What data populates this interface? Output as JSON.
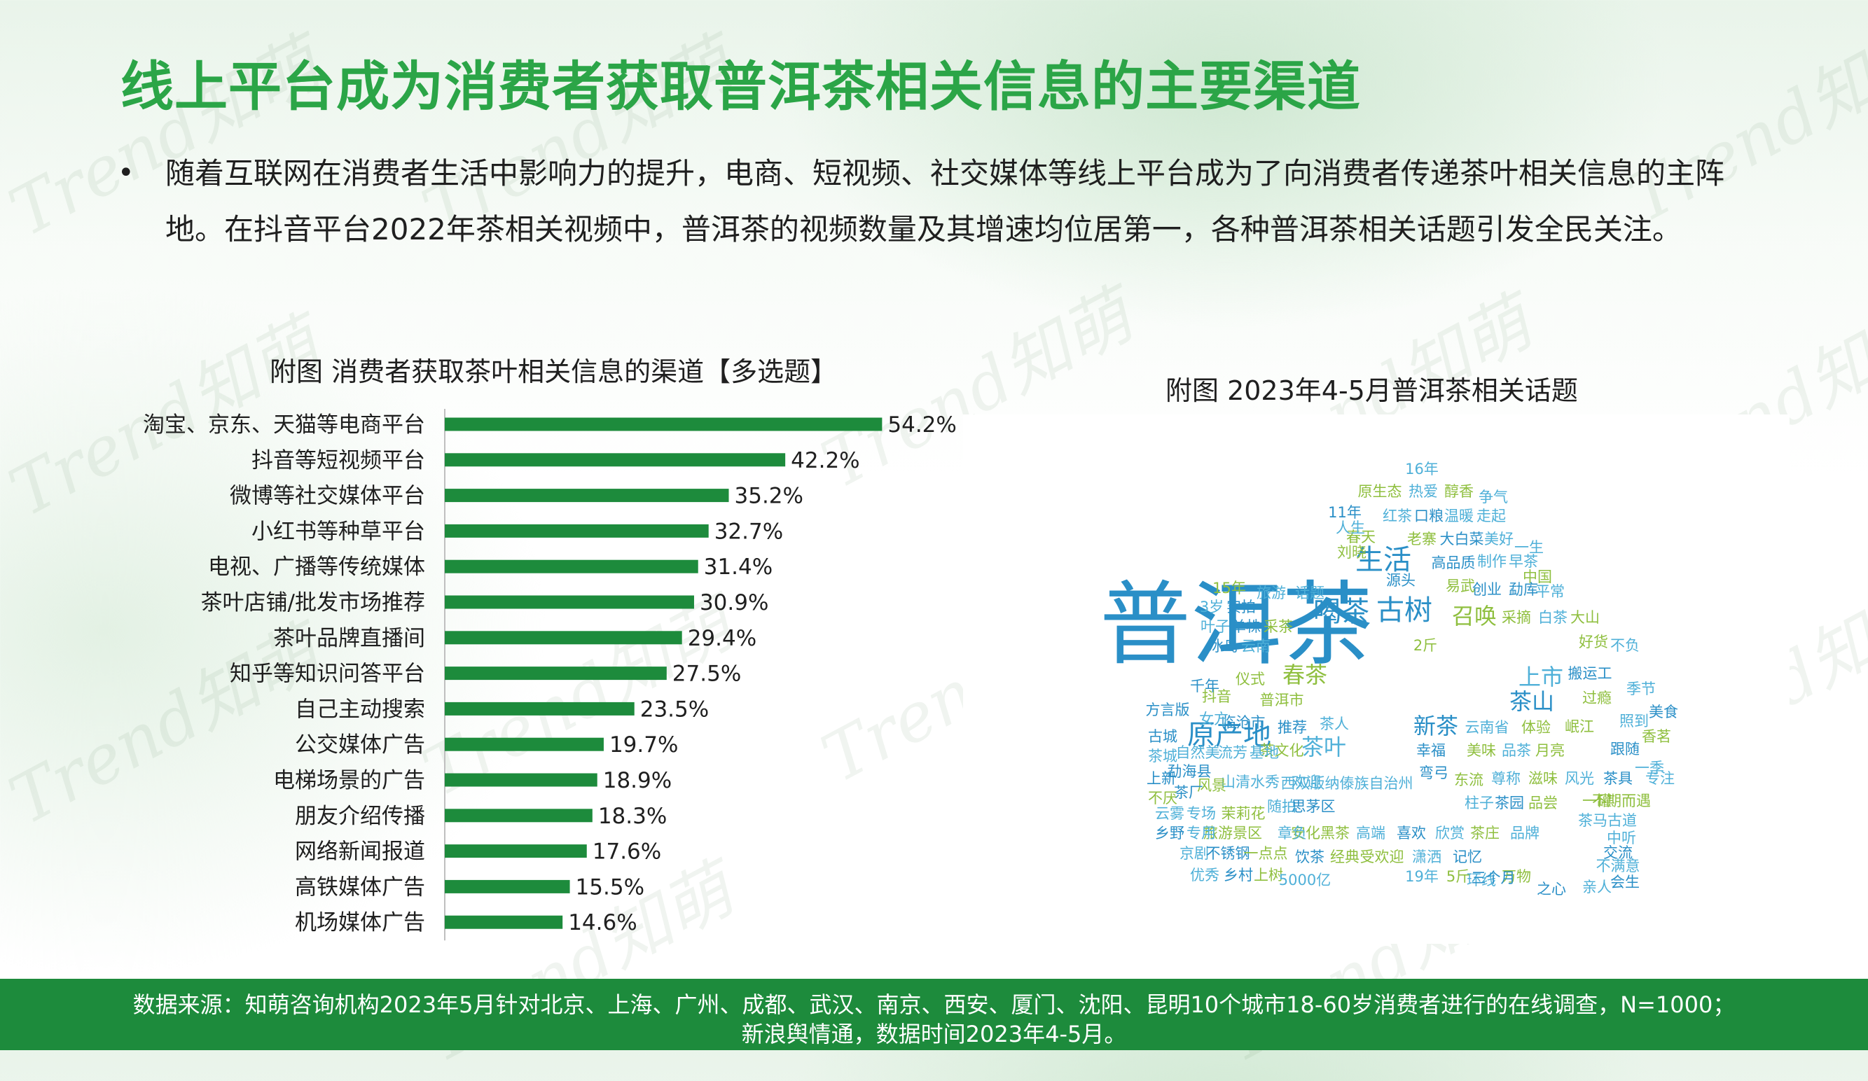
{
  "title": "线上平台成为消费者获取普洱茶相关信息的主要渠道",
  "bullet": "随着互联网在消费者生活中影响力的提升，电商、短视频、社交媒体等线上平台成为了向消费者传递茶叶相关信息的主阵地。在抖音平台2022年茶相关视频中，普洱茶的视频数量及其增速均位居第一，各种普洱茶相关话题引发全民关注。",
  "watermark_text": "Trend知萌",
  "chart_data": {
    "type": "bar",
    "orientation": "horizontal",
    "title": "附图 消费者获取茶叶相关信息的渠道【多选题】",
    "categories": [
      "淘宝、京东、天猫等电商平台",
      "抖音等短视频平台",
      "微博等社交媒体平台",
      "小红书等种草平台",
      "电视、广播等传统媒体",
      "茶叶店铺/批发市场推荐",
      "茶叶品牌直播间",
      "知乎等知识问答平台",
      "自己主动搜索",
      "公交媒体广告",
      "电梯场景的广告",
      "朋友介绍传播",
      "网络新闻报道",
      "高铁媒体广告",
      "机场媒体广告"
    ],
    "values": [
      54.2,
      42.2,
      35.2,
      32.7,
      31.4,
      30.9,
      29.4,
      27.5,
      23.5,
      19.7,
      18.9,
      18.3,
      17.6,
      15.5,
      14.6
    ],
    "labels": [
      "54.2%",
      "42.2%",
      "35.2%",
      "32.7%",
      "31.4%",
      "30.9%",
      "29.4%",
      "27.5%",
      "23.5%",
      "19.7%",
      "18.9%",
      "18.3%",
      "17.6%",
      "15.5%",
      "14.6%"
    ],
    "unit": "%",
    "xlim": [
      0,
      60
    ],
    "bar_color": "#1d8b3c",
    "grid": false,
    "legend": "none"
  },
  "wordcloud": {
    "title": "附图 2023年4-5月普洱茶相关话题",
    "words": [
      {
        "t": "普洱茶",
        "c": "#2a8fc7",
        "s": 7
      },
      {
        "t": "原产地",
        "c": "#2a8fc7",
        "s": 3
      },
      {
        "t": "喝茶",
        "c": "#2a8fc7",
        "s": 3
      },
      {
        "t": "古树",
        "c": "#2a8fc7",
        "s": 3
      },
      {
        "t": "生活",
        "c": "#2a8fc7",
        "s": 3
      },
      {
        "t": "召唤",
        "c": "#8fbf3f",
        "s": 2
      },
      {
        "t": "茶叶",
        "c": "#4fb0d8",
        "s": 2
      },
      {
        "t": "上市",
        "c": "#4fb0d8",
        "s": 2
      },
      {
        "t": "新茶",
        "c": "#2a8fc7",
        "s": 2
      },
      {
        "t": "春茶",
        "c": "#8fbf3f",
        "s": 2
      },
      {
        "t": "茶山",
        "c": "#2a8fc7",
        "s": 2
      },
      {
        "t": "西双版纳傣族自治州",
        "c": "#4fb0d8",
        "s": 1
      },
      {
        "t": "普洱市",
        "c": "#8fbf3f",
        "s": 1
      },
      {
        "t": "临沧市",
        "c": "#2a8fc7",
        "s": 1
      },
      {
        "t": "云南省",
        "c": "#4fb0d8",
        "s": 1
      },
      {
        "t": "体验",
        "c": "#8fbf3f",
        "s": 1
      },
      {
        "t": "茶人",
        "c": "#4fb0d8",
        "s": 1
      },
      {
        "t": "源头",
        "c": "#2a8fc7",
        "s": 1
      },
      {
        "t": "易武",
        "c": "#8fbf3f",
        "s": 1
      },
      {
        "t": "高品质",
        "c": "#2a8fc7",
        "s": 1
      },
      {
        "t": "采摘",
        "c": "#8fbf3f",
        "s": 1
      },
      {
        "t": "白茶",
        "c": "#4fb0d8",
        "s": 1
      },
      {
        "t": "大山",
        "c": "#8fbf3f",
        "s": 1
      },
      {
        "t": "冰岛",
        "c": "#2a8fc7",
        "s": 1
      },
      {
        "t": "云南",
        "c": "#4fb0d8",
        "s": 1
      },
      {
        "t": "仪式",
        "c": "#8fbf3f",
        "s": 1
      },
      {
        "t": "好货",
        "c": "#8fbf3f",
        "s": 1
      },
      {
        "t": "不负",
        "c": "#4fb0d8",
        "s": 1
      },
      {
        "t": "搬运工",
        "c": "#2a8fc7",
        "s": 1
      },
      {
        "t": "过瘾",
        "c": "#8fbf3f",
        "s": 1
      },
      {
        "t": "季节",
        "c": "#4fb0d8",
        "s": 1
      },
      {
        "t": "美食",
        "c": "#2a8fc7",
        "s": 1
      },
      {
        "t": "香茗",
        "c": "#8fbf3f",
        "s": 1
      },
      {
        "t": "跟随",
        "c": "#2a8fc7",
        "s": 1
      },
      {
        "t": "一季",
        "c": "#4fb0d8",
        "s": 1
      },
      {
        "t": "专注",
        "c": "#4fb0d8",
        "s": 1
      },
      {
        "t": "茶具",
        "c": "#2a8fc7",
        "s": 1
      },
      {
        "t": "风光",
        "c": "#4fb0d8",
        "s": 1
      },
      {
        "t": "滋味",
        "c": "#8fbf3f",
        "s": 1
      },
      {
        "t": "尊称",
        "c": "#4fb0d8",
        "s": 1
      },
      {
        "t": "东流",
        "c": "#8fbf3f",
        "s": 1
      },
      {
        "t": "弯弓",
        "c": "#2a8fc7",
        "s": 1
      },
      {
        "t": "幸福",
        "c": "#2a8fc7",
        "s": 1
      },
      {
        "t": "美味",
        "c": "#8fbf3f",
        "s": 1
      },
      {
        "t": "品茶",
        "c": "#4fb0d8",
        "s": 1
      },
      {
        "t": "月亮",
        "c": "#8fbf3f",
        "s": 1
      },
      {
        "t": "茶文化",
        "c": "#8fbf3f",
        "s": 1
      },
      {
        "t": "推荐",
        "c": "#2a8fc7",
        "s": 1
      },
      {
        "t": "茶园",
        "c": "#2a8fc7",
        "s": 1
      },
      {
        "t": "品尝",
        "c": "#8fbf3f",
        "s": 1
      },
      {
        "t": "柱子",
        "c": "#4fb0d8",
        "s": 1
      },
      {
        "t": "茶马古道",
        "c": "#4fb0d8",
        "s": 1
      },
      {
        "t": "中听",
        "c": "#4fb0d8",
        "s": 1
      },
      {
        "t": "交流",
        "c": "#2a8fc7",
        "s": 1
      },
      {
        "t": "不期而遇",
        "c": "#8fbf3f",
        "s": 1
      },
      {
        "t": "一罐",
        "c": "#8fbf3f",
        "s": 1
      },
      {
        "t": "不满意",
        "c": "#4fb0d8",
        "s": 1
      },
      {
        "t": "会生",
        "c": "#2a8fc7",
        "s": 1
      },
      {
        "t": "亲人",
        "c": "#4fb0d8",
        "s": 1
      },
      {
        "t": "之心",
        "c": "#2a8fc7",
        "s": 1
      },
      {
        "t": "万物",
        "c": "#8fbf3f",
        "s": 1
      },
      {
        "t": "环线",
        "c": "#4fb0d8",
        "s": 1
      },
      {
        "t": "品牌",
        "c": "#4fb0d8",
        "s": 1
      },
      {
        "t": "茶庄",
        "c": "#8fbf3f",
        "s": 1
      },
      {
        "t": "欣赏",
        "c": "#4fb0d8",
        "s": 1
      },
      {
        "t": "喜欢",
        "c": "#2a8fc7",
        "s": 1
      },
      {
        "t": "高端",
        "c": "#4fb0d8",
        "s": 1
      },
      {
        "t": "安化黑茶",
        "c": "#8fbf3f",
        "s": 1
      },
      {
        "t": "章负",
        "c": "#4fb0d8",
        "s": 1
      },
      {
        "t": "旅游景区",
        "c": "#8fbf3f",
        "s": 1
      },
      {
        "t": "专用",
        "c": "#4fb0d8",
        "s": 1
      },
      {
        "t": "乡野",
        "c": "#2a8fc7",
        "s": 1
      },
      {
        "t": "云雾",
        "c": "#4fb0d8",
        "s": 1
      },
      {
        "t": "专场",
        "c": "#4fb0d8",
        "s": 1
      },
      {
        "t": "茉莉花",
        "c": "#8fbf3f",
        "s": 1
      },
      {
        "t": "随拍",
        "c": "#4fb0d8",
        "s": 1
      },
      {
        "t": "思茅区",
        "c": "#2a8fc7",
        "s": 1
      },
      {
        "t": "欢迎",
        "c": "#4fb0d8",
        "s": 1
      },
      {
        "t": "山清水秀",
        "c": "#4fb0d8",
        "s": 1
      },
      {
        "t": "风景",
        "c": "#8fbf3f",
        "s": 1
      },
      {
        "t": "茶厂",
        "c": "#2a8fc7",
        "s": 1
      },
      {
        "t": "不厌",
        "c": "#8fbf3f",
        "s": 1
      },
      {
        "t": "上新",
        "c": "#2a8fc7",
        "s": 1
      },
      {
        "t": "勐海县",
        "c": "#2a8fc7",
        "s": 1
      },
      {
        "t": "茶城",
        "c": "#4fb0d8",
        "s": 1
      },
      {
        "t": "自然美",
        "c": "#4fb0d8",
        "s": 1
      },
      {
        "t": "流芳",
        "c": "#4fb0d8",
        "s": 1
      },
      {
        "t": "基地",
        "c": "#4fb0d8",
        "s": 1
      },
      {
        "t": "古城",
        "c": "#2a8fc7",
        "s": 1
      },
      {
        "t": "女方",
        "c": "#4fb0d8",
        "s": 1
      },
      {
        "t": "方言版",
        "c": "#2a8fc7",
        "s": 1
      },
      {
        "t": "抖音",
        "c": "#8fbf3f",
        "s": 1
      },
      {
        "t": "千年",
        "c": "#2a8fc7",
        "s": 1
      },
      {
        "t": "京剧",
        "c": "#4fb0d8",
        "s": 1
      },
      {
        "t": "不锈钢",
        "c": "#2a8fc7",
        "s": 1
      },
      {
        "t": "一点点",
        "c": "#8fbf3f",
        "s": 1
      },
      {
        "t": "饮茶",
        "c": "#2a8fc7",
        "s": 1
      },
      {
        "t": "经典",
        "c": "#8fbf3f",
        "s": 1
      },
      {
        "t": "受欢迎",
        "c": "#8fbf3f",
        "s": 1
      },
      {
        "t": "潇洒",
        "c": "#4fb0d8",
        "s": 1
      },
      {
        "t": "记忆",
        "c": "#2a8fc7",
        "s": 1
      },
      {
        "t": "优秀",
        "c": "#4fb0d8",
        "s": 1
      },
      {
        "t": "乡村",
        "c": "#2a8fc7",
        "s": 1
      },
      {
        "t": "上树",
        "c": "#8fbf3f",
        "s": 1
      },
      {
        "t": "5000亿",
        "c": "#4fb0d8",
        "s": 1
      },
      {
        "t": "19年",
        "c": "#4fb0d8",
        "s": 1
      },
      {
        "t": "5斤",
        "c": "#8fbf3f",
        "s": 1
      },
      {
        "t": "三个月",
        "c": "#2a8fc7",
        "s": 1
      },
      {
        "t": "叶子",
        "c": "#4fb0d8",
        "s": 1
      },
      {
        "t": "单株",
        "c": "#2a8fc7",
        "s": 1
      },
      {
        "t": "采茶",
        "c": "#8fbf3f",
        "s": 1
      },
      {
        "t": "3岁",
        "c": "#4fb0d8",
        "s": 1
      },
      {
        "t": "实拍",
        "c": "#2a8fc7",
        "s": 1
      },
      {
        "t": "15年",
        "c": "#8fbf3f",
        "s": 1
      },
      {
        "t": "旅游",
        "c": "#4fb0d8",
        "s": 1
      },
      {
        "t": "话题",
        "c": "#4fb0d8",
        "s": 1
      },
      {
        "t": "刘晓",
        "c": "#8fbf3f",
        "s": 1
      },
      {
        "t": "春天",
        "c": "#8fbf3f",
        "s": 1
      },
      {
        "t": "老寨",
        "c": "#8fbf3f",
        "s": 1
      },
      {
        "t": "大白菜",
        "c": "#2a8fc7",
        "s": 1
      },
      {
        "t": "美好",
        "c": "#4fb0d8",
        "s": 1
      },
      {
        "t": "一生",
        "c": "#4fb0d8",
        "s": 1
      },
      {
        "t": "制作",
        "c": "#4fb0d8",
        "s": 1
      },
      {
        "t": "早茶",
        "c": "#4fb0d8",
        "s": 1
      },
      {
        "t": "中国",
        "c": "#8fbf3f",
        "s": 1
      },
      {
        "t": "创业",
        "c": "#2a8fc7",
        "s": 1
      },
      {
        "t": "勐库",
        "c": "#2a8fc7",
        "s": 1
      },
      {
        "t": "平常",
        "c": "#4fb0d8",
        "s": 1
      },
      {
        "t": "人生",
        "c": "#4fb0d8",
        "s": 1
      },
      {
        "t": "11年",
        "c": "#2a8fc7",
        "s": 1
      },
      {
        "t": "红茶",
        "c": "#4fb0d8",
        "s": 1
      },
      {
        "t": "口粮",
        "c": "#2a8fc7",
        "s": 1
      },
      {
        "t": "温暖",
        "c": "#4fb0d8",
        "s": 1
      },
      {
        "t": "走起",
        "c": "#4fb0d8",
        "s": 1
      },
      {
        "t": "原生态",
        "c": "#8fbf3f",
        "s": 1
      },
      {
        "t": "热爱",
        "c": "#4fb0d8",
        "s": 1
      },
      {
        "t": "醇香",
        "c": "#8fbf3f",
        "s": 1
      },
      {
        "t": "争气",
        "c": "#4fb0d8",
        "s": 1
      },
      {
        "t": "16年",
        "c": "#4fb0d8",
        "s": 1
      },
      {
        "t": "2斤",
        "c": "#8fbf3f",
        "s": 1
      },
      {
        "t": "照到",
        "c": "#4fb0d8",
        "s": 1
      },
      {
        "t": "岷江",
        "c": "#8fbf3f",
        "s": 1
      }
    ]
  },
  "footer": {
    "line1": "数据来源：知萌咨询机构2023年5月针对北京、上海、广州、成都、武汉、南京、西安、厦门、沈阳、昆明10个城市18-60岁消费者进行的在线调查，N=1000；",
    "line2": "新浪舆情通，数据时间2023年4-5月。"
  }
}
